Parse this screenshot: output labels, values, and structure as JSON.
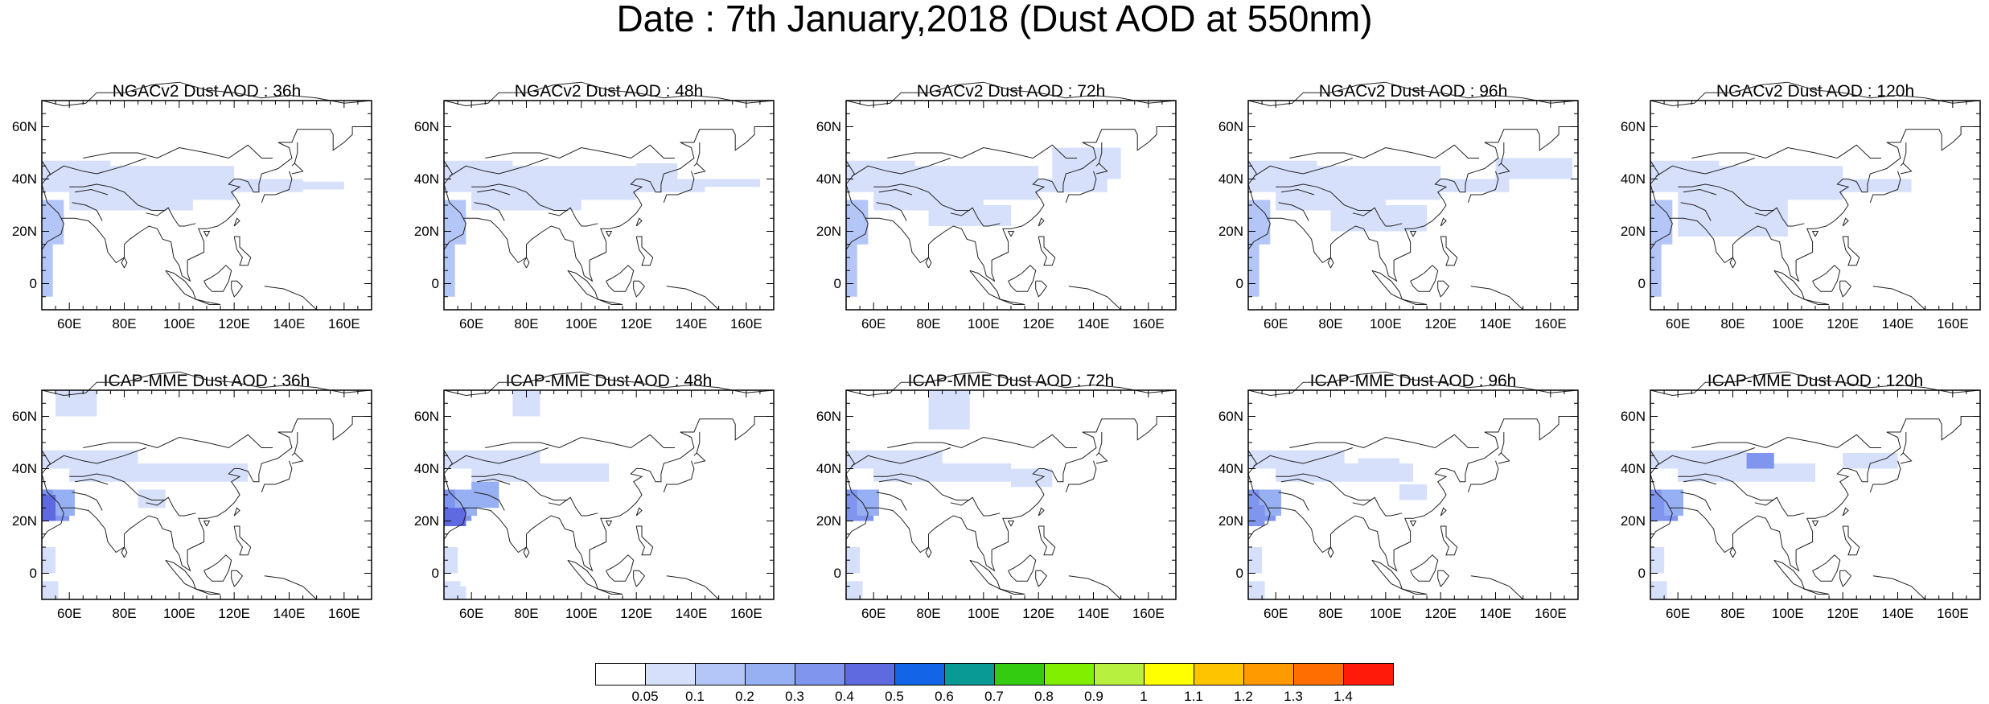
{
  "title": "Date : 7th January,2018 (Dust AOD at 550nm)",
  "axes": {
    "lat_ticks": [
      "60N",
      "40N",
      "20N",
      "0"
    ],
    "lon_ticks": [
      "60E",
      "80E",
      "100E",
      "120E",
      "140E",
      "160E"
    ]
  },
  "panels": [
    {
      "title": "NGACv2 Dust AOD : 36h"
    },
    {
      "title": "NGACv2 Dust AOD : 48h"
    },
    {
      "title": "NGACv2 Dust AOD : 72h"
    },
    {
      "title": "NGACv2 Dust AOD : 96h"
    },
    {
      "title": "NGACv2 Dust AOD : 120h"
    },
    {
      "title": "ICAP-MME Dust AOD : 36h"
    },
    {
      "title": "ICAP-MME Dust AOD : 48h"
    },
    {
      "title": "ICAP-MME Dust AOD : 72h"
    },
    {
      "title": "ICAP-MME Dust AOD : 96h"
    },
    {
      "title": "ICAP-MME Dust AOD : 120h"
    }
  ],
  "colorbar": {
    "labels": [
      "0.05",
      "0.1",
      "0.2",
      "0.3",
      "0.4",
      "0.5",
      "0.6",
      "0.7",
      "0.8",
      "0.9",
      "1",
      "1.1",
      "1.2",
      "1.3",
      "1.4"
    ],
    "colors": [
      "#ffffff",
      "#d6e0fb",
      "#b4c6f7",
      "#97aff3",
      "#7f95ee",
      "#5f6ae0",
      "#1364e6",
      "#0a9a95",
      "#33cc10",
      "#80f000",
      "#b8f040",
      "#ffff00",
      "#ffc400",
      "#ff9b00",
      "#ff6e00",
      "#ff1a0a"
    ]
  }
}
